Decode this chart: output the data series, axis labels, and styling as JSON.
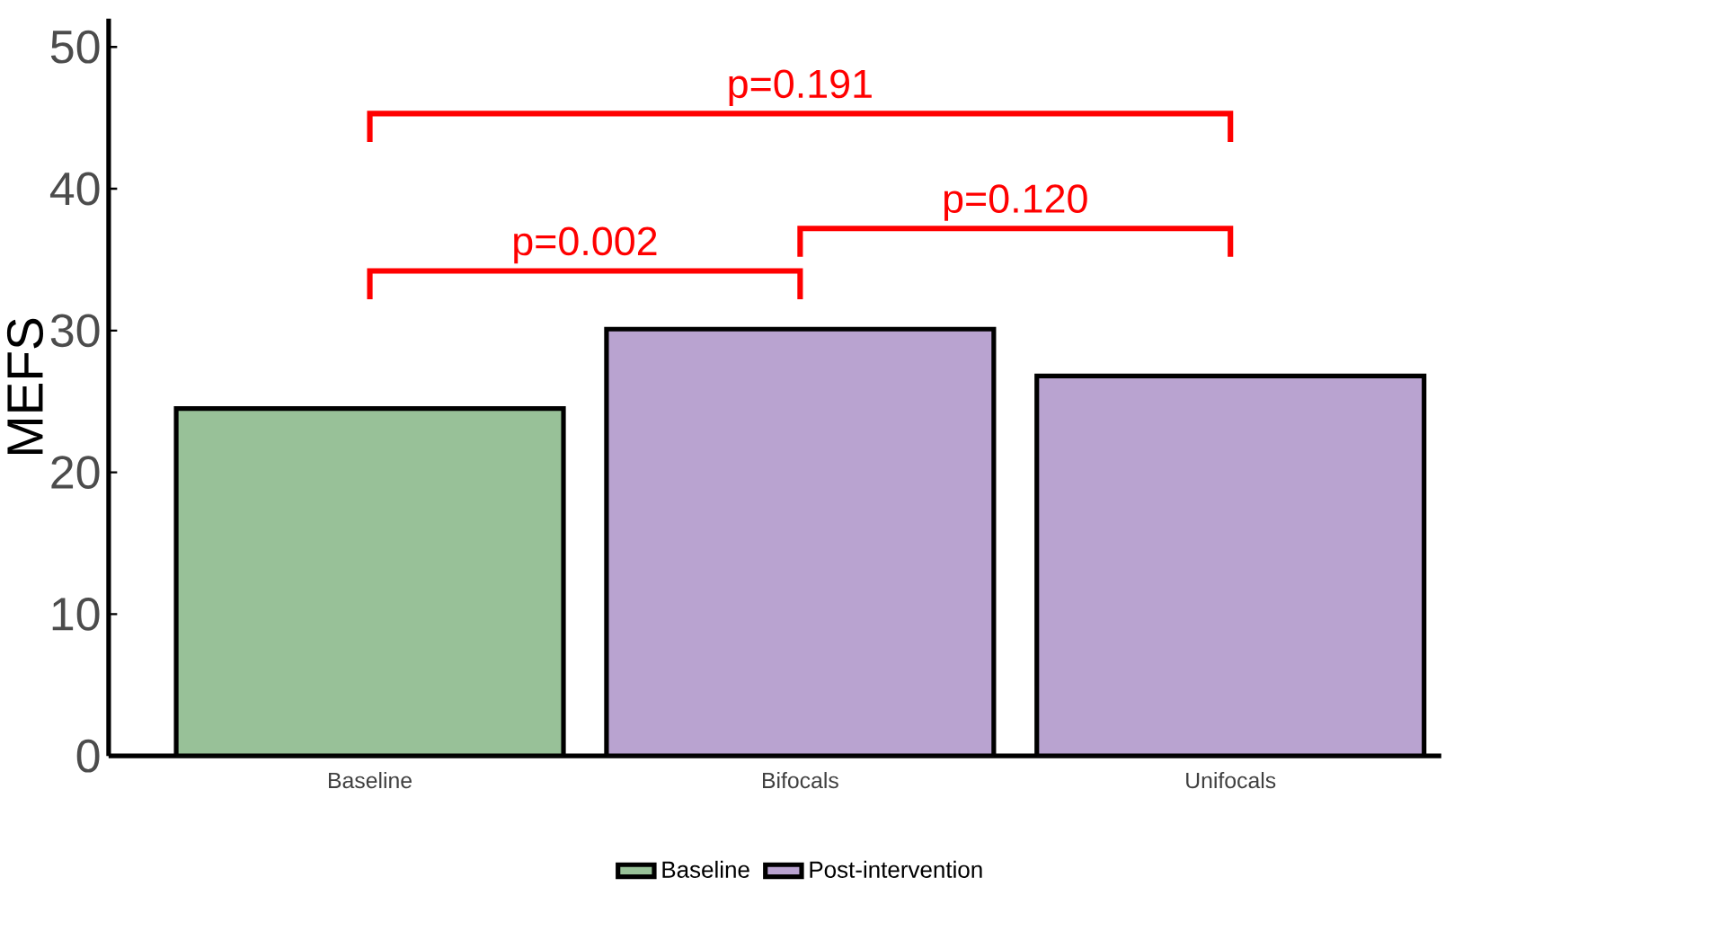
{
  "chart_data": {
    "type": "bar",
    "ylabel": "MEFS",
    "categories": [
      "Baseline",
      "Bifocals",
      "Unifocals"
    ],
    "series": [
      {
        "name": "Baseline",
        "color": "#98c198",
        "values": [
          24.5,
          null,
          null
        ]
      },
      {
        "name": "Post-intervention",
        "color": "#b9a3d0",
        "values": [
          null,
          30.1,
          26.8
        ]
      }
    ],
    "ylim": [
      0,
      52
    ],
    "yticks": [
      0,
      10,
      20,
      30,
      40,
      50
    ],
    "grid": false,
    "legend": "bottom",
    "annotations": [
      "p=0.002",
      "p=0.120",
      "p=0.191"
    ]
  }
}
